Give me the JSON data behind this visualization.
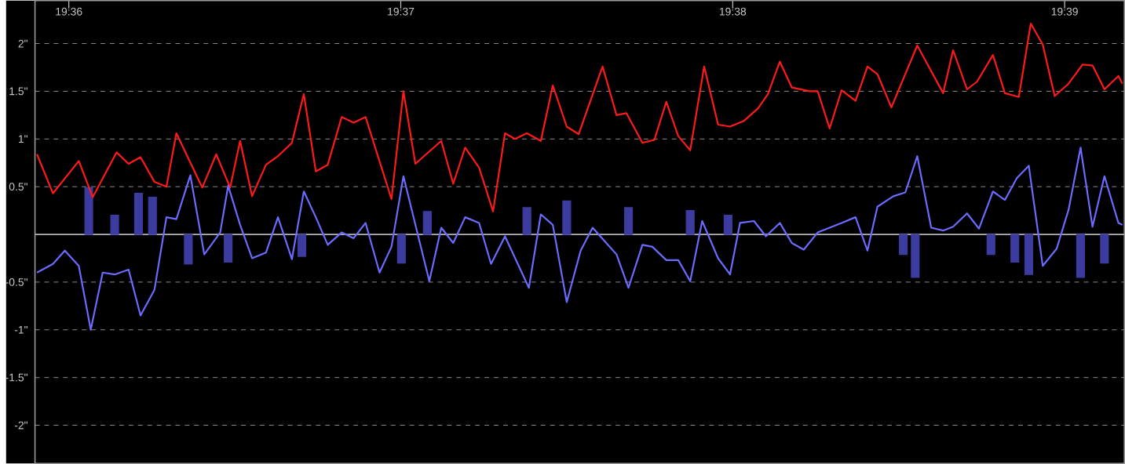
{
  "chart_data": {
    "type": "line",
    "xlim": [
      19.5983,
      19.653
    ],
    "ylim": [
      -2.4,
      2.45
    ],
    "grid": "y",
    "xticks": [
      {
        "value": 19.6,
        "label": "19:36"
      },
      {
        "value": 19.616666666666667,
        "label": "19:37"
      },
      {
        "value": 19.633333333333333,
        "label": "19:38"
      },
      {
        "value": 19.65,
        "label": "19:39"
      }
    ],
    "yticks": [
      {
        "value": -2,
        "label": "-2\""
      },
      {
        "value": -1.5,
        "label": "-1.5\""
      },
      {
        "value": -1,
        "label": "-1\""
      },
      {
        "value": -0.5,
        "label": "-0.5\""
      },
      {
        "value": 0.5,
        "label": "0.5\""
      },
      {
        "value": 1,
        "label": "1\""
      },
      {
        "value": 1.5,
        "label": "1.5\""
      },
      {
        "value": 2,
        "label": "2\""
      }
    ],
    "ref_lines": [
      {
        "axis": "y",
        "value": 0,
        "color": "#b4b4b4"
      }
    ],
    "series": [
      {
        "color": "#ff1a1a",
        "x": [
          19.5984,
          19.5992,
          19.6005,
          19.6012,
          19.6024,
          19.603,
          19.6036,
          19.6043,
          19.6049,
          19.6054,
          19.6067,
          19.6074,
          19.6081,
          19.6086,
          19.6092,
          19.6099,
          19.6105,
          19.6112,
          19.6118,
          19.6124,
          19.613,
          19.6137,
          19.6143,
          19.6149,
          19.6162,
          19.6168,
          19.6174,
          19.6187,
          19.6193,
          19.6199,
          19.6206,
          19.6213,
          19.6219,
          19.6224,
          19.623,
          19.6237,
          19.6243,
          19.625,
          19.6256,
          19.6268,
          19.6275,
          19.628,
          19.6288,
          19.6294,
          19.63,
          19.6306,
          19.6312,
          19.6319,
          19.6326,
          19.6332,
          19.6339,
          19.6346,
          19.6351,
          19.6357,
          19.6363,
          19.6372,
          19.6376,
          19.6382,
          19.6388,
          19.6395,
          19.6401,
          19.6406,
          19.6413,
          19.6426,
          19.6439,
          19.6444,
          19.6451,
          19.6456,
          19.6464,
          19.647,
          19.6477,
          19.6483,
          19.6489,
          19.6495,
          19.6502,
          19.6509,
          19.6514,
          19.652,
          19.6527,
          19.6529
        ],
        "values": [
          0.84,
          0.43,
          0.77,
          0.39,
          0.86,
          0.74,
          0.81,
          0.55,
          0.5,
          1.06,
          0.49,
          0.84,
          0.49,
          0.98,
          0.4,
          0.73,
          0.82,
          0.96,
          1.47,
          0.66,
          0.73,
          1.23,
          1.17,
          1.23,
          0.37,
          1.5,
          0.74,
          0.98,
          0.53,
          0.91,
          0.7,
          0.24,
          1.06,
          1.0,
          1.06,
          0.98,
          1.56,
          1.13,
          1.05,
          1.76,
          1.25,
          1.27,
          0.96,
          0.99,
          1.39,
          1.03,
          0.88,
          1.76,
          1.15,
          1.13,
          1.19,
          1.32,
          1.47,
          1.81,
          1.54,
          1.5,
          1.5,
          1.11,
          1.51,
          1.4,
          1.76,
          1.68,
          1.33,
          1.98,
          1.48,
          1.93,
          1.52,
          1.6,
          1.88,
          1.48,
          1.44,
          2.21,
          1.99,
          1.45,
          1.58,
          1.78,
          1.77,
          1.52,
          1.66,
          1.58
        ]
      },
      {
        "color": "#6b6bff",
        "x": [
          19.5984,
          19.5992,
          19.5998,
          19.6005,
          19.6011,
          19.6017,
          19.6023,
          19.603,
          19.6036,
          19.6043,
          19.6049,
          19.6054,
          19.6061,
          19.6068,
          19.6076,
          19.608,
          19.6086,
          19.6092,
          19.6099,
          19.6105,
          19.6112,
          19.6118,
          19.6124,
          19.613,
          19.6137,
          19.6143,
          19.6149,
          19.6156,
          19.6162,
          19.6168,
          19.6181,
          19.6187,
          19.6193,
          19.6199,
          19.6206,
          19.6212,
          19.6219,
          19.6231,
          19.6237,
          19.6243,
          19.625,
          19.6257,
          19.6263,
          19.6275,
          19.6281,
          19.6288,
          19.6293,
          19.63,
          19.6306,
          19.6312,
          19.6318,
          19.6326,
          19.6332,
          19.6337,
          19.6344,
          19.635,
          19.6357,
          19.6363,
          19.6369,
          19.6376,
          19.6382,
          19.6388,
          19.6395,
          19.6401,
          19.6406,
          19.6414,
          19.642,
          19.6426,
          19.6433,
          19.6439,
          19.6444,
          19.6451,
          19.6457,
          19.6464,
          19.647,
          19.6476,
          19.6482,
          19.6489,
          19.6496,
          19.6502,
          19.6508,
          19.6514,
          19.652,
          19.6527,
          19.6529
        ],
        "values": [
          -0.4,
          -0.31,
          -0.17,
          -0.33,
          -1.0,
          -0.4,
          -0.42,
          -0.37,
          -0.85,
          -0.58,
          0.18,
          0.16,
          0.62,
          -0.21,
          0.02,
          0.51,
          0.1,
          -0.25,
          -0.19,
          0.18,
          -0.26,
          0.45,
          0.18,
          -0.11,
          0.02,
          -0.04,
          0.12,
          -0.4,
          -0.13,
          0.61,
          -0.49,
          0.07,
          -0.09,
          0.18,
          0.12,
          -0.31,
          -0.02,
          -0.56,
          0.21,
          0.1,
          -0.71,
          -0.17,
          0.07,
          -0.21,
          -0.56,
          -0.11,
          -0.13,
          -0.27,
          -0.27,
          -0.49,
          0.14,
          -0.25,
          -0.42,
          0.12,
          0.14,
          -0.02,
          0.12,
          -0.09,
          -0.16,
          0.02,
          0.07,
          0.12,
          0.18,
          -0.17,
          0.29,
          0.4,
          0.44,
          0.82,
          0.07,
          0.04,
          0.08,
          0.22,
          0.06,
          0.45,
          0.36,
          0.59,
          0.72,
          -0.33,
          -0.15,
          0.26,
          0.91,
          0.08,
          0.61,
          0.12,
          0.1
        ]
      },
      {
        "type": "bar",
        "color": "#3c3ca0",
        "x": [
          19.601,
          19.6023,
          19.6035,
          19.6042,
          19.606,
          19.608,
          19.6117,
          19.6167,
          19.618,
          19.623,
          19.625,
          19.6281,
          19.6312,
          19.6331,
          19.6419,
          19.6425,
          19.6463,
          19.6475,
          19.6482,
          19.6508,
          19.652
        ],
        "values": [
          0.49,
          0.2,
          0.43,
          0.39,
          -0.31,
          -0.29,
          -0.23,
          -0.3,
          0.24,
          0.28,
          0.35,
          0.28,
          0.25,
          0.2,
          -0.21,
          -0.45,
          -0.21,
          -0.29,
          -0.42,
          -0.45,
          -0.3
        ]
      }
    ]
  }
}
